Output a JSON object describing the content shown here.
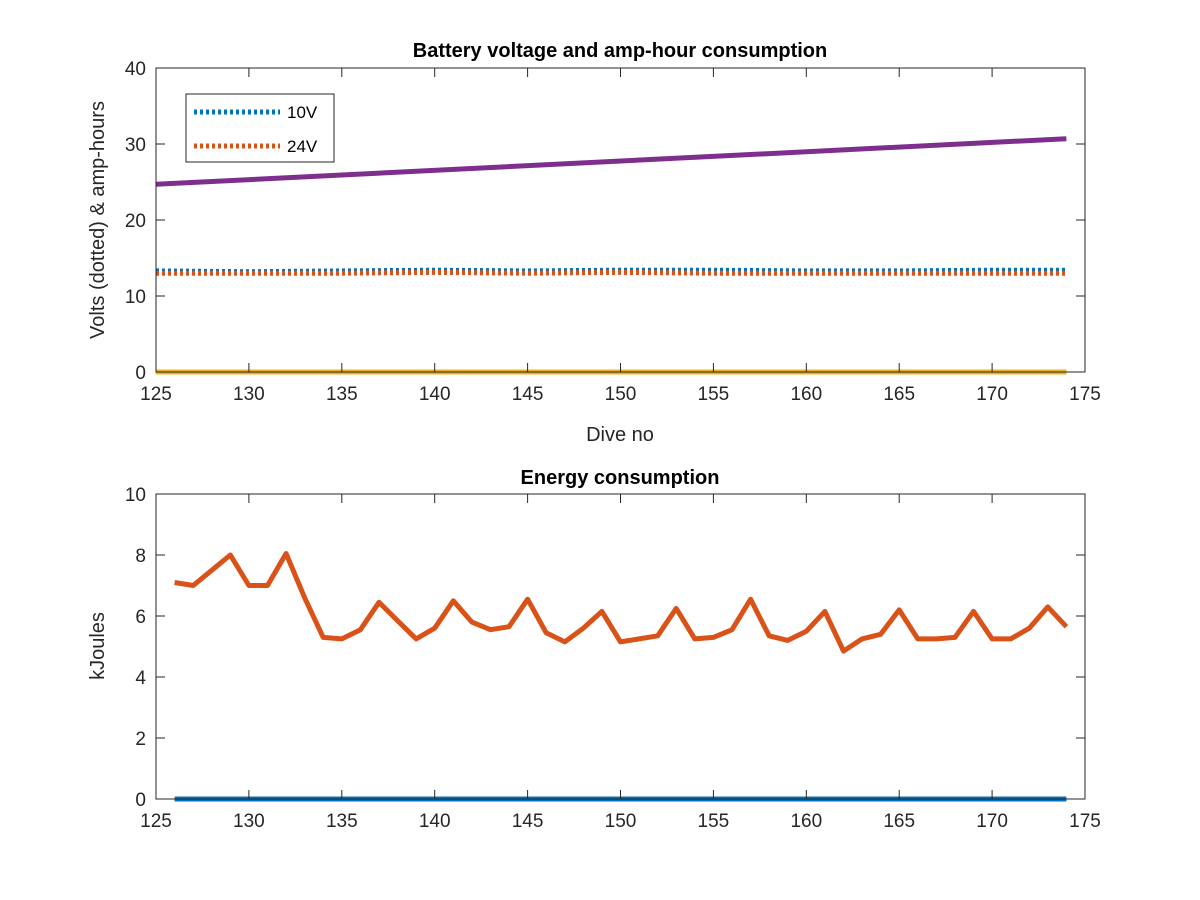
{
  "chart_data": [
    {
      "type": "line",
      "title": "Battery voltage and amp-hour consumption",
      "xlabel": "Dive no",
      "ylabel": "Volts (dotted) & amp-hours",
      "xlim": [
        125,
        175
      ],
      "ylim": [
        0,
        40
      ],
      "xticks": [
        125,
        130,
        135,
        140,
        145,
        150,
        155,
        160,
        165,
        170,
        175
      ],
      "yticks": [
        0,
        10,
        20,
        30,
        40
      ],
      "grid": false,
      "legend": {
        "placement": "top-left",
        "entries": [
          "10V",
          "24V"
        ]
      },
      "series": [
        {
          "name": "10V",
          "style": "dotted",
          "color": "#0072BD",
          "x": [
            125,
            130,
            135,
            140,
            145,
            150,
            155,
            160,
            165,
            170,
            174
          ],
          "y": [
            13.3,
            13.2,
            13.3,
            13.4,
            13.3,
            13.4,
            13.4,
            13.3,
            13.3,
            13.4,
            13.4
          ]
        },
        {
          "name": "24V",
          "style": "dotted",
          "color": "#D95319",
          "x": [
            125,
            130,
            135,
            140,
            145,
            150,
            155,
            160,
            165,
            170,
            174
          ],
          "y": [
            13.0,
            13.0,
            13.0,
            13.1,
            13.0,
            13.1,
            13.0,
            13.0,
            13.0,
            13.0,
            13.0
          ]
        },
        {
          "style": "solid",
          "color": "#EDB120",
          "x": [
            125,
            174
          ],
          "y": [
            0,
            0
          ]
        },
        {
          "style": "solid",
          "color": "#7E2F8E",
          "x": [
            125,
            174
          ],
          "y": [
            24.7,
            30.7
          ]
        }
      ]
    },
    {
      "type": "line",
      "title": "Energy consumption",
      "xlabel": "",
      "ylabel": "kJoules",
      "xlim": [
        125,
        175
      ],
      "ylim": [
        0,
        10
      ],
      "xticks": [
        125,
        130,
        135,
        140,
        145,
        150,
        155,
        160,
        165,
        170,
        175
      ],
      "yticks": [
        0,
        2,
        4,
        6,
        8,
        10
      ],
      "grid": false,
      "series": [
        {
          "style": "solid",
          "color": "#0072BD",
          "x": [
            126,
            174
          ],
          "y": [
            0,
            0
          ]
        },
        {
          "style": "solid",
          "color": "#D95319",
          "x": [
            126,
            127,
            128,
            129,
            130,
            131,
            132,
            133,
            134,
            135,
            136,
            137,
            138,
            139,
            140,
            141,
            142,
            143,
            144,
            145,
            146,
            147,
            148,
            149,
            150,
            151,
            152,
            153,
            154,
            155,
            156,
            157,
            158,
            159,
            160,
            161,
            162,
            163,
            164,
            165,
            166,
            167,
            168,
            169,
            170,
            171,
            172,
            173,
            174
          ],
          "y": [
            7.1,
            7.0,
            7.5,
            8.0,
            7.0,
            7.0,
            8.05,
            6.6,
            5.3,
            5.25,
            5.55,
            6.45,
            5.85,
            5.25,
            5.6,
            6.5,
            5.8,
            5.55,
            5.65,
            6.55,
            5.45,
            5.15,
            5.6,
            6.15,
            5.15,
            5.25,
            5.35,
            6.25,
            5.25,
            5.3,
            5.55,
            6.55,
            5.35,
            5.2,
            5.5,
            6.15,
            4.85,
            5.25,
            5.4,
            6.2,
            5.25,
            5.25,
            5.3,
            6.15,
            5.25,
            5.25,
            5.6,
            6.3,
            5.65
          ]
        }
      ]
    }
  ]
}
